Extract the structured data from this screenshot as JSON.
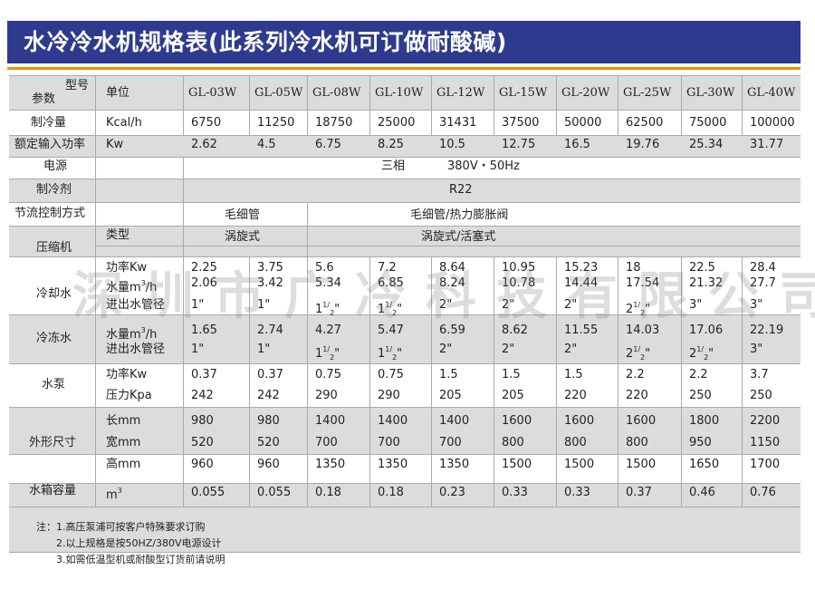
{
  "title": "水冷冷水机规格表(此系列冷水机可订做耐酸碱)",
  "header": {
    "model_label": "型号",
    "param_label": "参数",
    "unit_label": "单位",
    "models": [
      "GL-03W",
      "GL-05W",
      "GL-08W",
      "GL-10W",
      "GL-12W",
      "GL-15W",
      "GL-20W",
      "GL-25W",
      "GL-30W",
      "GL-40W"
    ]
  },
  "rows": {
    "cooling": {
      "label": "制冷量",
      "unit": "Kcal/h",
      "values": [
        "6750",
        "11250",
        "18750",
        "25000",
        "31431",
        "37500",
        "50000",
        "62500",
        "75000",
        "100000"
      ]
    },
    "power_input": {
      "label": "额定输入功率",
      "unit": "Kw",
      "values": [
        "2.62",
        "4.5",
        "6.75",
        "8.25",
        "10.5",
        "12.75",
        "16.5",
        "19.76",
        "25.34",
        "31.77"
      ]
    },
    "power_supply": {
      "label": "电源",
      "value_a": "三相",
      "value_b": "380V・50Hz"
    },
    "refrigerant": {
      "label": "制冷剂",
      "value": "R22"
    },
    "throttle": {
      "label": "节流控制方式",
      "value_small": "毛细管",
      "value_large": "毛细管/热力膨胀阀"
    },
    "compressor": {
      "label": "压缩机",
      "type_label": "类型",
      "type_small": "涡旋式",
      "type_large": "涡旋式/活塞式",
      "power_label": "功率Kw",
      "power_values": [
        "2.25",
        "3.75",
        "5.6",
        "7.2",
        "8.64",
        "10.95",
        "15.23",
        "18",
        "22.5",
        "28.4"
      ]
    },
    "cooling_water": {
      "label": "冷却水",
      "flow_label": "水量m",
      "flow_sup": "3",
      "flow_suffix": "/h",
      "flow_values": [
        "2.06",
        "3.42",
        "5.34",
        "6.85",
        "8.24",
        "10.78",
        "14.44",
        "17.54",
        "21.32",
        "27.7"
      ],
      "pipe_label": "进出水管径",
      "pipe_values": [
        {
          "main": "1\""
        },
        {
          "main": "1\""
        },
        {
          "main": "1",
          "sup": "1",
          "sub": "2",
          "tail": "\""
        },
        {
          "main": "1",
          "sup": "1",
          "sub": "2",
          "tail": "\""
        },
        {
          "main": "2\""
        },
        {
          "main": "2\""
        },
        {
          "main": "2\""
        },
        {
          "main": "2",
          "sup": "1",
          "sub": "2",
          "tail": "\""
        },
        {
          "main": "3\""
        },
        {
          "main": "3\""
        }
      ]
    },
    "chilled_water": {
      "label": "冷冻水",
      "flow_label": "水量m",
      "flow_sup": "3",
      "flow_suffix": "/h",
      "flow_values": [
        "1.65",
        "2.74",
        "4.27",
        "5.47",
        "6.59",
        "8.62",
        "11.55",
        "14.03",
        "17.06",
        "22.19"
      ],
      "pipe_label": "进出水管径",
      "pipe_values": [
        {
          "main": "1\""
        },
        {
          "main": "1\""
        },
        {
          "main": "1",
          "sup": "1",
          "sub": "2",
          "tail": "\""
        },
        {
          "main": "1",
          "sup": "1",
          "sub": "2",
          "tail": "\""
        },
        {
          "main": "2\""
        },
        {
          "main": "2\""
        },
        {
          "main": "2\""
        },
        {
          "main": "2",
          "sup": "1",
          "sub": "2",
          "tail": "\""
        },
        {
          "main": "2",
          "sup": "1",
          "sub": "2",
          "tail": "\""
        },
        {
          "main": "3\""
        }
      ]
    },
    "pump": {
      "label": "水泵",
      "power_label": "功率Kw",
      "power_values": [
        "0.37",
        "0.37",
        "0.75",
        "0.75",
        "1.5",
        "1.5",
        "1.5",
        "2.2",
        "2.2",
        "3.7"
      ],
      "pressure_label": "压力Kpa",
      "pressure_values": [
        "242",
        "242",
        "290",
        "290",
        "205",
        "205",
        "220",
        "220",
        "250",
        "250"
      ]
    },
    "dimensions": {
      "label": "外形尺寸",
      "length_label": "长mm",
      "length_values": [
        "980",
        "980",
        "1400",
        "1400",
        "1400",
        "1600",
        "1600",
        "1600",
        "1800",
        "2200"
      ],
      "width_label": "宽mm",
      "width_values": [
        "520",
        "520",
        "700",
        "700",
        "700",
        "800",
        "800",
        "800",
        "950",
        "1150"
      ],
      "height_label": "高mm",
      "height_values": [
        "960",
        "960",
        "1350",
        "1350",
        "1350",
        "1500",
        "1500",
        "1500",
        "1650",
        "1700"
      ]
    },
    "tank": {
      "label": "水箱容量",
      "unit": "m",
      "unit_sup": "3",
      "values": [
        "0.055",
        "0.055",
        "0.18",
        "0.18",
        "0.23",
        "0.33",
        "0.33",
        "0.37",
        "0.46",
        "0.76"
      ]
    }
  },
  "watermark": "深圳市广冷科技有限公司",
  "notes": [
    "注：1.高压泵浦可按客户特殊要求订购",
    "2.以上规格是按50HZ/380V电源设计",
    "3.如需低温型机或耐酸型订货前请说明"
  ]
}
